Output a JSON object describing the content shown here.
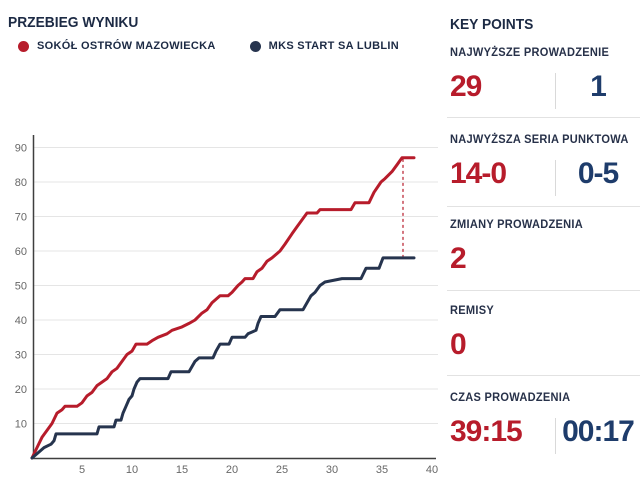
{
  "header": {
    "title": "PRZEBIEG WYNIKU"
  },
  "colors": {
    "home_red": "#b71c2b",
    "away_navy_line": "#26344e",
    "away_navy_text": "#1e3c6b",
    "heading_navy": "#1c2a44",
    "grid_gray": "#e5e5e5",
    "axis_gray": "#3f3f3f",
    "tick_gray": "#676767",
    "divider_gray": "#e2e2e2"
  },
  "chart_data": {
    "type": "line",
    "title": "PRZEBIEG WYNIKU",
    "xlabel": "",
    "ylabel": "",
    "xlim": [
      0,
      40.5
    ],
    "ylim": [
      0,
      93
    ],
    "x_ticks": [
      5,
      10,
      15,
      20,
      25,
      30,
      35,
      40
    ],
    "y_ticks": [
      10,
      20,
      30,
      40,
      50,
      60,
      70,
      80,
      90
    ],
    "grid": "horizontal",
    "legend_position": "top",
    "series": [
      {
        "name": "SOKÓŁ OSTRÓW MAZOWIECKA",
        "color": "#b71c2b",
        "points": [
          [
            0,
            0
          ],
          [
            0.5,
            3
          ],
          [
            1,
            6
          ],
          [
            1.5,
            8
          ],
          [
            2,
            10
          ],
          [
            2.5,
            13
          ],
          [
            3,
            14
          ],
          [
            3.3,
            15
          ],
          [
            4.5,
            15
          ],
          [
            5,
            16
          ],
          [
            5.5,
            18
          ],
          [
            6,
            19
          ],
          [
            6.5,
            21
          ],
          [
            7,
            22
          ],
          [
            7.5,
            23
          ],
          [
            8,
            25
          ],
          [
            8.5,
            26
          ],
          [
            9,
            28
          ],
          [
            9.5,
            30
          ],
          [
            10,
            31
          ],
          [
            10.4,
            33
          ],
          [
            11.5,
            33
          ],
          [
            12,
            34
          ],
          [
            12.6,
            35
          ],
          [
            13.5,
            36
          ],
          [
            14,
            37
          ],
          [
            15,
            38
          ],
          [
            15.7,
            39
          ],
          [
            16.3,
            40
          ],
          [
            17,
            42
          ],
          [
            17.5,
            43
          ],
          [
            18,
            45
          ],
          [
            18.8,
            47
          ],
          [
            19.6,
            47
          ],
          [
            20,
            48
          ],
          [
            20.6,
            50
          ],
          [
            21,
            51
          ],
          [
            21.3,
            52
          ],
          [
            22.1,
            52
          ],
          [
            22.5,
            54
          ],
          [
            23,
            55
          ],
          [
            23.5,
            57
          ],
          [
            24,
            58
          ],
          [
            24.8,
            60
          ],
          [
            25.3,
            62
          ],
          [
            26,
            65
          ],
          [
            26.5,
            67
          ],
          [
            27,
            69
          ],
          [
            27.5,
            71
          ],
          [
            28.5,
            71
          ],
          [
            28.8,
            72
          ],
          [
            31.9,
            72
          ],
          [
            32.3,
            74
          ],
          [
            33.7,
            74
          ],
          [
            34.2,
            77
          ],
          [
            34.9,
            80
          ],
          [
            35.3,
            81
          ],
          [
            36,
            83
          ],
          [
            36.5,
            85
          ],
          [
            37,
            87
          ],
          [
            38.2,
            87
          ]
        ]
      },
      {
        "name": "MKS START SA LUBLIN",
        "color": "#26344e",
        "points": [
          [
            0,
            0
          ],
          [
            0.8,
            2
          ],
          [
            1.2,
            3
          ],
          [
            1.9,
            4
          ],
          [
            2.2,
            5
          ],
          [
            2.4,
            7
          ],
          [
            6.5,
            7
          ],
          [
            6.7,
            9
          ],
          [
            8.2,
            9
          ],
          [
            8.4,
            11
          ],
          [
            8.9,
            11
          ],
          [
            9.1,
            13
          ],
          [
            9.4,
            15
          ],
          [
            9.7,
            17
          ],
          [
            10,
            18
          ],
          [
            10.2,
            20
          ],
          [
            10.5,
            22
          ],
          [
            10.8,
            23
          ],
          [
            13.6,
            23
          ],
          [
            13.9,
            25
          ],
          [
            15.7,
            25
          ],
          [
            16.3,
            28
          ],
          [
            16.7,
            29
          ],
          [
            18.1,
            29
          ],
          [
            18.4,
            31
          ],
          [
            18.8,
            33
          ],
          [
            19.7,
            33
          ],
          [
            20,
            35
          ],
          [
            21.3,
            35
          ],
          [
            21.6,
            36
          ],
          [
            22.4,
            37
          ],
          [
            22.6,
            39
          ],
          [
            22.9,
            41
          ],
          [
            24.3,
            41
          ],
          [
            24.8,
            43
          ],
          [
            27.1,
            43
          ],
          [
            27.5,
            45
          ],
          [
            27.9,
            47
          ],
          [
            28.3,
            48
          ],
          [
            28.8,
            50
          ],
          [
            29.3,
            51
          ],
          [
            31,
            52
          ],
          [
            32.9,
            52
          ],
          [
            33.4,
            55
          ],
          [
            34.7,
            55
          ],
          [
            35.1,
            58
          ],
          [
            38.2,
            58
          ]
        ]
      }
    ],
    "lead_marker": {
      "x": 37.1,
      "y_from": 58,
      "y_to": 87,
      "style": "dashed",
      "color": "#b71c2b"
    }
  },
  "key_points": {
    "title": "KEY POINTS",
    "sections": [
      {
        "label": "NAJWYŻSZE PROWADZENIE",
        "home": "29",
        "away": "1"
      },
      {
        "label": "NAJWYŻSZA SERIA PUNKTOWA",
        "home": "14-0",
        "away": "0-5"
      },
      {
        "label": "ZMIANY PROWADZENIA",
        "home": "2",
        "away": null
      },
      {
        "label": "REMISY",
        "home": "0",
        "away": null
      },
      {
        "label": "CZAS PROWADZENIA",
        "home": "39:15",
        "away": "00:17"
      }
    ]
  }
}
